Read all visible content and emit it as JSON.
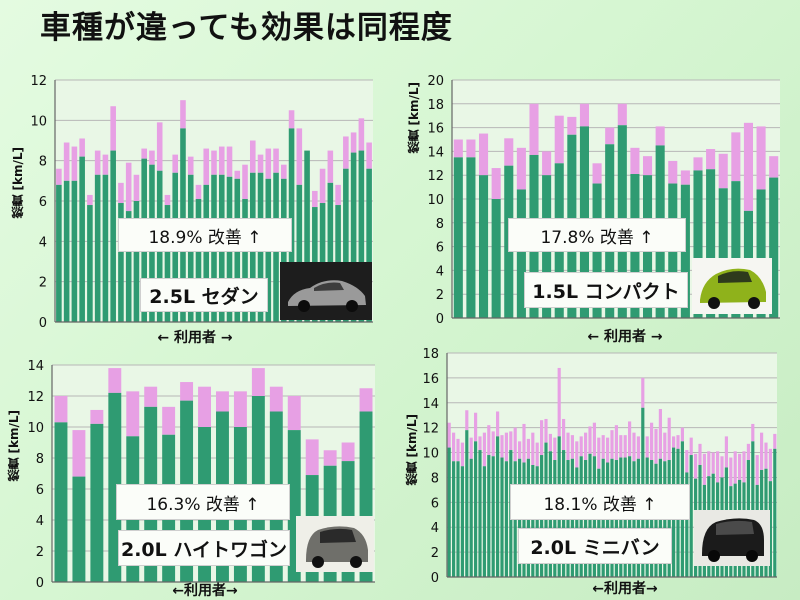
{
  "title": "車種が違っても効果は同程度",
  "colors": {
    "base": "#2f9b72",
    "improvement": "#e7a0e4",
    "grid": "#b7b7b7",
    "axis": "#666666"
  },
  "chart_data": [
    {
      "type": "bar",
      "ylabel": "燃費 [km/L]",
      "xlabel": "← 利用者 →",
      "improvement_text": "18.9% 改善 ↑",
      "car_label": "2.5L セダン",
      "ylim": [
        0,
        12
      ],
      "yticks": [
        0,
        2,
        4,
        6,
        8,
        10,
        12
      ],
      "grid": true,
      "series": [
        {
          "values": [
            6.8,
            7.0,
            7.0,
            8.2,
            5.8,
            7.3,
            7.3,
            8.5,
            5.9,
            5.5,
            6.0,
            8.1,
            7.8,
            7.5,
            5.8,
            7.4,
            9.6,
            7.3,
            6.1,
            6.8,
            7.3,
            7.3,
            7.2,
            7.1,
            6.1,
            7.4,
            7.4,
            7.1,
            7.4,
            7.1,
            9.6,
            6.8,
            8.5,
            5.7,
            5.9,
            6.9,
            5.8,
            7.6,
            8.4,
            8.5,
            7.6
          ]
        },
        {
          "values": [
            7.6,
            8.9,
            8.7,
            9.1,
            6.3,
            8.5,
            8.3,
            10.7,
            6.9,
            7.9,
            7.3,
            8.6,
            8.5,
            9.9,
            6.3,
            8.3,
            11.0,
            8.2,
            6.8,
            8.6,
            8.5,
            8.7,
            8.7,
            7.5,
            7.8,
            9.0,
            8.3,
            8.6,
            8.6,
            7.8,
            10.5,
            9.6,
            8.3,
            6.5,
            7.6,
            8.5,
            6.8,
            9.2,
            9.4,
            10.1,
            8.9
          ]
        }
      ]
    },
    {
      "type": "bar",
      "ylabel": "燃費 [km/L]",
      "xlabel": "← 利用者 →",
      "improvement_text": "17.8% 改善 ↑",
      "car_label": "1.5L コンパクト",
      "ylim": [
        0,
        20
      ],
      "yticks": [
        0,
        2,
        4,
        6,
        8,
        10,
        12,
        14,
        16,
        18,
        20
      ],
      "grid": true,
      "series": [
        {
          "values": [
            13.5,
            13.5,
            12.0,
            10.0,
            12.8,
            10.8,
            13.7,
            12.0,
            13.0,
            15.4,
            16.1,
            11.3,
            14.6,
            16.2,
            12.1,
            12.0,
            14.5,
            11.3,
            11.2,
            12.4,
            12.5,
            10.9,
            11.5,
            9.0,
            10.8,
            11.8
          ]
        },
        {
          "values": [
            15.0,
            15.0,
            15.5,
            12.6,
            15.1,
            14.3,
            18.0,
            14.0,
            17.0,
            16.9,
            18.0,
            13.0,
            16.0,
            18.0,
            14.3,
            13.6,
            16.1,
            13.2,
            12.4,
            13.5,
            14.2,
            13.8,
            15.6,
            16.4,
            16.1,
            13.6
          ]
        }
      ]
    },
    {
      "type": "bar",
      "ylabel": "燃費 [km/L]",
      "xlabel": "←利用者→",
      "improvement_text": "16.3% 改善 ↑",
      "car_label": "2.0L ハイトワゴン",
      "ylim": [
        0,
        14
      ],
      "yticks": [
        0,
        2,
        4,
        6,
        8,
        10,
        12,
        14
      ],
      "grid": true,
      "series": [
        {
          "values": [
            10.3,
            6.8,
            10.2,
            12.2,
            9.4,
            11.3,
            9.5,
            11.7,
            10.0,
            11.0,
            10.0,
            12.0,
            11.0,
            9.8,
            6.9,
            7.5,
            7.8,
            11.0
          ]
        },
        {
          "values": [
            12.0,
            9.8,
            11.1,
            13.8,
            12.3,
            12.6,
            11.3,
            12.9,
            12.6,
            12.3,
            12.3,
            13.8,
            12.6,
            12.0,
            9.2,
            8.5,
            9.0,
            12.5
          ]
        }
      ]
    },
    {
      "type": "bar",
      "ylabel": "燃費 [km/L]",
      "xlabel": "←利用者→",
      "improvement_text": "18.1% 改善 ↑",
      "car_label": "2.0L ミニバン",
      "ylim": [
        0,
        18
      ],
      "yticks": [
        0,
        2,
        4,
        6,
        8,
        10,
        12,
        14,
        16,
        18
      ],
      "grid": true,
      "series": [
        {
          "values": [
            10.4,
            9.3,
            9.3,
            8.9,
            11.8,
            9.5,
            10.9,
            10.2,
            8.9,
            9.8,
            9.7,
            11.3,
            9.6,
            9.3,
            10.2,
            9.3,
            9.5,
            9.2,
            9.5,
            9.0,
            8.9,
            9.8,
            10.8,
            10.1,
            9.4,
            11.3,
            10.2,
            9.4,
            9.5,
            8.8,
            9.7,
            9.4,
            9.9,
            9.7,
            8.7,
            9.5,
            9.2,
            9.5,
            9.4,
            9.6,
            9.6,
            9.7,
            9.3,
            9.5,
            13.6,
            9.6,
            9.4,
            9.1,
            9.5,
            9.3,
            9.4,
            10.4,
            10.3,
            10.9,
            8.4,
            9.8,
            7.9,
            9.0,
            7.4,
            8.1,
            8.3,
            7.6,
            8.0,
            8.8,
            7.3,
            7.5,
            7.8,
            7.6,
            9.4,
            10.9,
            7.4,
            8.6,
            8.7,
            7.7,
            10.3
          ]
        },
        {
          "values": [
            12.4,
            11.6,
            11.1,
            10.8,
            13.4,
            11.2,
            13.2,
            11.3,
            11.6,
            12.2,
            11.7,
            13.3,
            11.4,
            11.6,
            11.7,
            12.0,
            10.9,
            12.3,
            11.1,
            11.6,
            10.8,
            12.6,
            12.7,
            11.5,
            11.2,
            16.8,
            12.7,
            11.6,
            11.4,
            10.9,
            11.3,
            11.6,
            12.1,
            12.4,
            11.2,
            11.4,
            11.2,
            11.8,
            12.2,
            11.4,
            11.4,
            12.5,
            11.6,
            11.3,
            16.0,
            11.3,
            12.4,
            11.9,
            13.5,
            11.6,
            12.8,
            11.3,
            11.4,
            12.0,
            10.2,
            11.2,
            9.9,
            10.7,
            9.9,
            10.1,
            10.0,
            10.1,
            9.7,
            11.3,
            9.6,
            10.1,
            9.9,
            10.1,
            10.7,
            12.3,
            9.8,
            11.6,
            10.8,
            10.3,
            11.5
          ]
        }
      ]
    }
  ]
}
